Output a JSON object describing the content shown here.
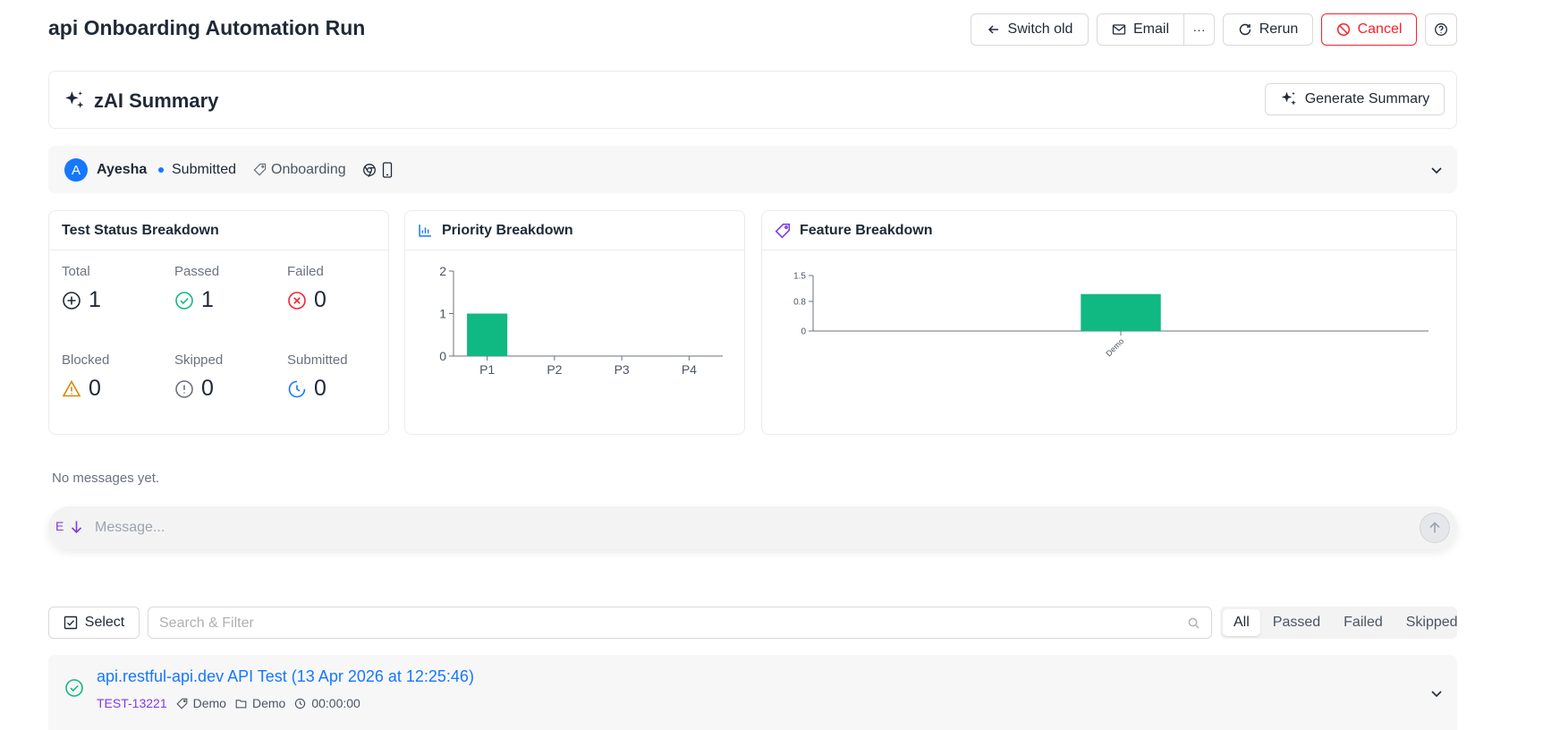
{
  "header": {
    "title": "api Onboarding Automation Run",
    "switch_old_label": "Switch old",
    "email_label": "Email",
    "more_label": "···",
    "rerun_label": "Rerun",
    "cancel_label": "Cancel"
  },
  "summary": {
    "title": "zAI Summary",
    "generate_label": "Generate Summary"
  },
  "meta": {
    "avatar_letter": "A",
    "user": "Ayesha",
    "status": "Submitted",
    "tag": "Onboarding"
  },
  "test_status": {
    "title": "Test Status Breakdown",
    "stats": [
      {
        "label": "Total",
        "value": "1"
      },
      {
        "label": "Passed",
        "value": "1"
      },
      {
        "label": "Failed",
        "value": "0"
      },
      {
        "label": "Blocked",
        "value": "0"
      },
      {
        "label": "Skipped",
        "value": "0"
      },
      {
        "label": "Submitted",
        "value": "0"
      }
    ]
  },
  "chart_data": [
    {
      "type": "bar",
      "title": "Priority Breakdown",
      "categories": [
        "P1",
        "P2",
        "P3",
        "P4"
      ],
      "values": [
        1,
        0,
        0,
        0
      ],
      "ylim": [
        0,
        2
      ],
      "yticks": [
        "0",
        "1",
        "2"
      ],
      "color": "#10b981"
    },
    {
      "type": "bar",
      "title": "Feature Breakdown",
      "categories": [
        "Demo"
      ],
      "values": [
        1
      ],
      "ylim": [
        0,
        1.5
      ],
      "yticks": [
        "0",
        "0.8",
        "1.5"
      ],
      "color": "#10b981"
    }
  ],
  "messages": {
    "empty_text": "No messages yet.",
    "prefix": "E",
    "placeholder": "Message..."
  },
  "toolbar": {
    "select_label": "Select",
    "search_placeholder": "Search & Filter",
    "filters": [
      "All",
      "Passed",
      "Failed",
      "Skipped"
    ],
    "active_filter": "All"
  },
  "test": {
    "title": "api.restful-api.dev API Test (13 Apr 2026 at 12:25:46)",
    "id": "TEST-13221",
    "tag": "Demo",
    "folder": "Demo",
    "duration": "00:00:00"
  },
  "colors": {
    "accent": "#1677ff",
    "success": "#10b981",
    "danger": "#f5222d",
    "warning": "#d48806",
    "purple": "#7c3aed"
  }
}
